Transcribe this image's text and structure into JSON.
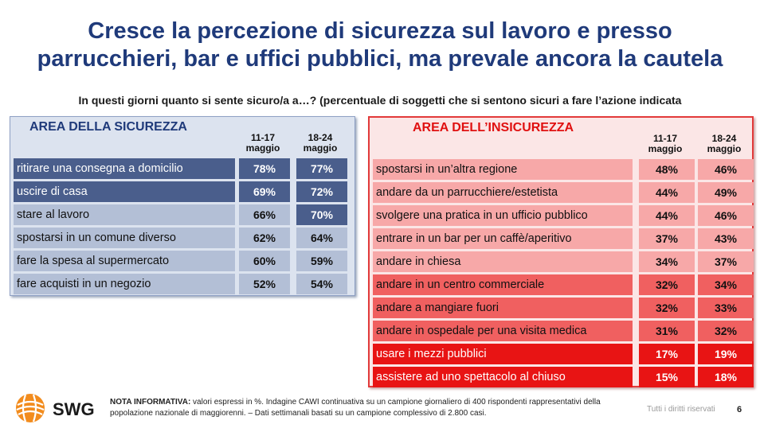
{
  "title_line1": "Cresce la percezione di sicurezza sul lavoro e presso",
  "title_line2": "parrucchieri, bar e uffici pubblici, ma prevale ancora la cautela",
  "subtitle": "In questi giorni quanto si sente sicuro/a a…? (percentuale di soggetti che si sentono sicuri a fare l’azione indicata",
  "security": {
    "heading": "AREA DELLA SICUREZZA",
    "col1_line1": "11-17",
    "col1_line2": "maggio",
    "col2_line1": "18-24",
    "col2_line2": "maggio",
    "rows": [
      {
        "label": "ritirare una consegna a domicilio",
        "v1": "78%",
        "v2": "77%"
      },
      {
        "label": "uscire di casa",
        "v1": "69%",
        "v2": "72%"
      },
      {
        "label": "stare al lavoro",
        "v1": "66%",
        "v2": "70%"
      },
      {
        "label": "spostarsi in un comune diverso",
        "v1": "62%",
        "v2": "64%"
      },
      {
        "label": "fare la spesa al supermercato",
        "v1": "60%",
        "v2": "59%"
      },
      {
        "label": "fare acquisti in un negozio",
        "v1": "52%",
        "v2": "54%"
      }
    ]
  },
  "insecurity": {
    "heading": "AREA DELL’INSICUREZZA",
    "col1_line1": "11-17",
    "col1_line2": "maggio",
    "col2_line1": "18-24",
    "col2_line2": "maggio",
    "rows": [
      {
        "label": "spostarsi in un’altra regione",
        "v1": "48%",
        "v2": "46%"
      },
      {
        "label": "andare da un parrucchiere/estetista",
        "v1": "44%",
        "v2": "49%"
      },
      {
        "label": "svolgere una pratica in un ufficio pubblico",
        "v1": "44%",
        "v2": "46%"
      },
      {
        "label": "entrare in un bar per un caffè/aperitivo",
        "v1": "37%",
        "v2": "43%"
      },
      {
        "label": "andare in chiesa",
        "v1": "34%",
        "v2": "37%"
      },
      {
        "label": "andare in un centro commerciale",
        "v1": "32%",
        "v2": "34%"
      },
      {
        "label": "andare a mangiare fuori",
        "v1": "32%",
        "v2": "33%"
      },
      {
        "label": "andare in ospedale per una visita medica",
        "v1": "31%",
        "v2": "32%"
      },
      {
        "label": "usare i mezzi pubblici",
        "v1": "17%",
        "v2": "19%"
      },
      {
        "label": "assistere ad uno spettacolo al chiuso",
        "v1": "15%",
        "v2": "18%"
      }
    ]
  },
  "footer": {
    "brand": "SWG",
    "note_bold": "NOTA INFORMATIVA:",
    "note_text": " valori espressi in %. Indagine CAWI continuativa su un campione giornaliero di 400 rispondenti rappresentativi della popolazione nazionale di maggiorenni. – Dati settimanali basati su un campione complessivo di 2.800 casi.",
    "rights": "Tutti i diritti riservati",
    "page": "6"
  },
  "colors": {
    "title": "#1f3a7a",
    "security_dark": "#4a5e8c",
    "security_light": "#b3bfd6",
    "insecurity_light": "#f7a8a8",
    "insecurity_mid": "#f06060",
    "insecurity_strong": "#e81414"
  }
}
